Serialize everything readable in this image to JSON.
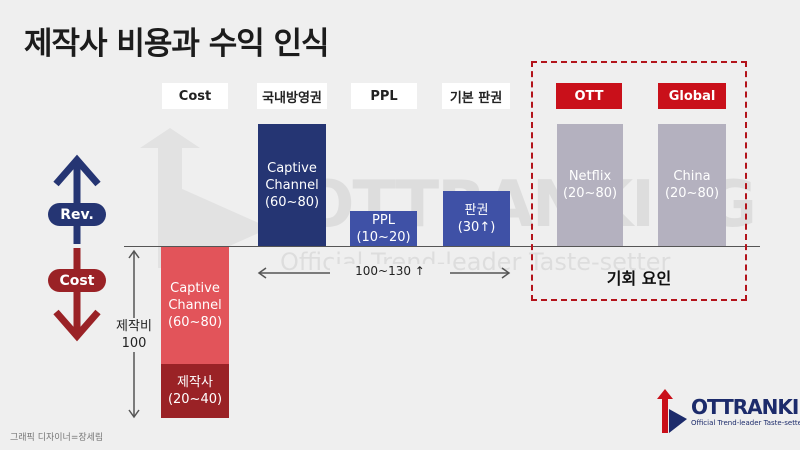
{
  "title": "제작사 비용과 수익 인식",
  "columns": {
    "cost": "Cost",
    "broadcast": "국내방영권",
    "ppl": "PPL",
    "base_license": "기본 판권",
    "ott": "OTT",
    "global": "Global"
  },
  "bars": {
    "captive_rev": [
      "Captive",
      "Channel",
      "(60~80)"
    ],
    "ppl": [
      "PPL",
      "(10~20)"
    ],
    "license": [
      "판권",
      "(30↑)"
    ],
    "netflix": [
      "Netflix",
      "(20~80)"
    ],
    "china": [
      "China",
      "(20~80)"
    ],
    "captive_cost": [
      "Captive",
      "Channel",
      "(60~80)"
    ],
    "producer": [
      "제작사",
      "(20~40)"
    ]
  },
  "side_labels": {
    "rev": "Rev.",
    "cost": "Cost"
  },
  "production_cost_label": [
    "제작비",
    "100"
  ],
  "revenue_range": "100~130 ↑",
  "opportunity_label": "기회 요인",
  "watermark": {
    "main": "OTTRANKING",
    "sub": "Official Trend-leader Taste-setter"
  },
  "logo": {
    "main": "OTTRANKING",
    "sub": "Official Trend-leader Taste-setter"
  },
  "credit": "그래픽 디자이너=장세림",
  "colors": {
    "navy": "#253573",
    "blue": "#3f51a6",
    "grey": "#b4b1bf",
    "red_light": "#e2545a",
    "red_dark": "#9a2226",
    "accent_red": "#c9101a"
  }
}
